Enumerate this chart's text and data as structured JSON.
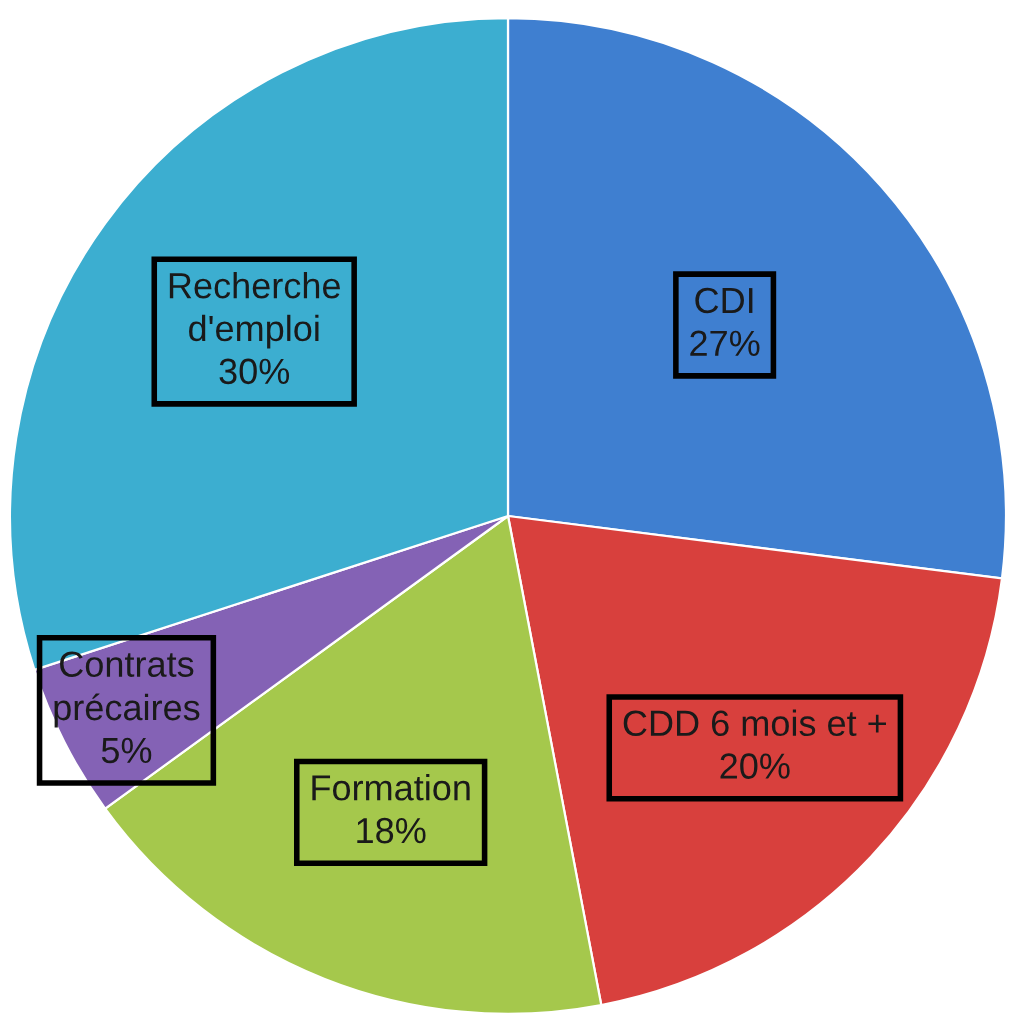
{
  "chart_data": {
    "type": "pie",
    "categories": [
      "CDI",
      "CDD 6 mois et +",
      "Formation",
      "Contrats\nprécaires",
      "Recherche\nd'emploi"
    ],
    "values": [
      27,
      20,
      18,
      5,
      30
    ],
    "value_labels": [
      "27%",
      "20%",
      "18%",
      "5%",
      "30%"
    ],
    "colors": [
      "#3f7fd0",
      "#d8403d",
      "#a5c84c",
      "#8462b5",
      "#3caed0"
    ]
  }
}
